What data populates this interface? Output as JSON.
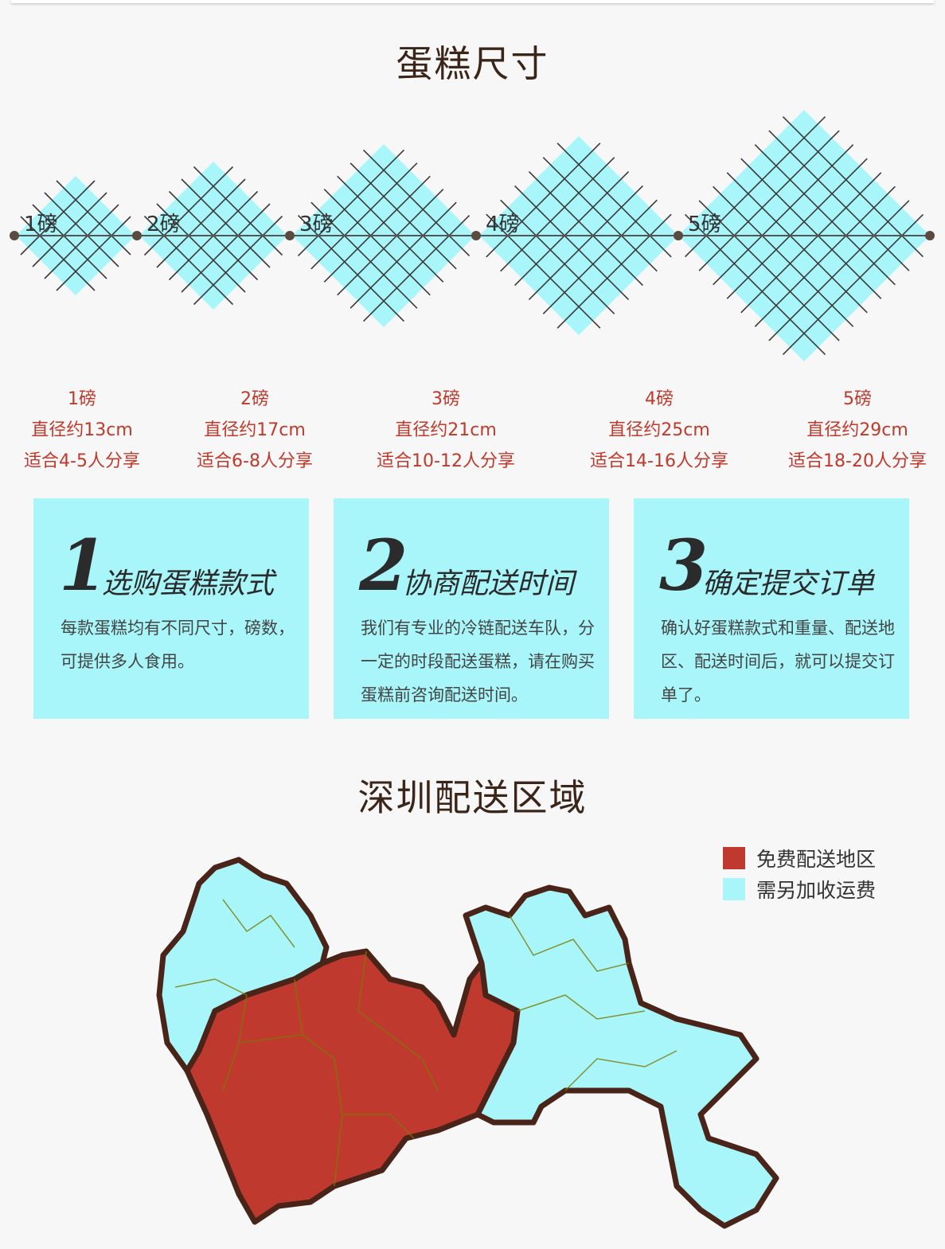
{
  "sizes_section": {
    "title": "蛋糕尺寸",
    "diagram_labels": [
      "1磅",
      "2磅",
      "3磅",
      "4磅",
      "5磅"
    ],
    "items": [
      {
        "weight": "1磅",
        "diameter": "直径约13cm",
        "serves": "适合4-5人分享"
      },
      {
        "weight": "2磅",
        "diameter": "直径约17cm",
        "serves": "适合6-8人分享"
      },
      {
        "weight": "3磅",
        "diameter": "直径约21cm",
        "serves": "适合10-12人分享"
      },
      {
        "weight": "4磅",
        "diameter": "直径约25cm",
        "serves": "适合14-16人分享"
      },
      {
        "weight": "5磅",
        "diameter": "直径约29cm",
        "serves": "适合18-20人分享"
      }
    ]
  },
  "steps": [
    {
      "number": "1",
      "title": "选购蛋糕款式",
      "text": "每款蛋糕均有不同尺寸，磅数，可提供多人食用。"
    },
    {
      "number": "2",
      "title": "协商配送时间",
      "text": "我们有专业的冷链配送车队，分一定的时段配送蛋糕，请在购买蛋糕前咨询配送时间。"
    },
    {
      "number": "3",
      "title": "确定提交订单",
      "text": "确认好蛋糕款式和重量、配送地区、配送时间后，就可以提交订单了。"
    }
  ],
  "delivery_section": {
    "title": "深圳配送区域",
    "legend": [
      {
        "label": "免费配送地区",
        "color": "#c0392f"
      },
      {
        "label": "需另加收运费",
        "color": "#a8f6fa"
      }
    ]
  },
  "colors": {
    "diamond": "#a8f6fa",
    "label_red": "#c0392b",
    "title_brown": "#3b2418",
    "map_border": "#4a2418"
  }
}
